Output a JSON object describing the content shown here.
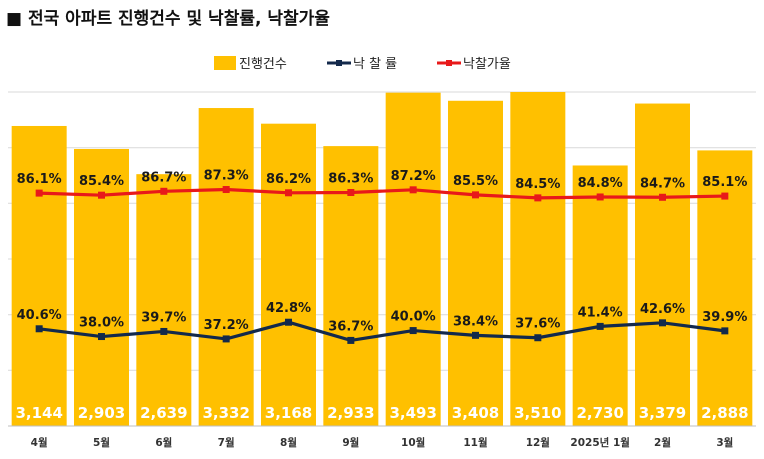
{
  "title": "■ 전국 아파트 진행건수 및 낙찰률, 낙찰가율",
  "colors": {
    "bar": "#FFC000",
    "rate_line": "#13294B",
    "price_line": "#E8191A",
    "grid": "#D9D9D9"
  },
  "chart_data": {
    "type": "bar",
    "categories": [
      "4월",
      "5월",
      "6월",
      "7월",
      "8월",
      "9월",
      "10월",
      "11월",
      "12월",
      "2025년 1월",
      "2월",
      "3월"
    ],
    "series": [
      {
        "name": "진행건수",
        "type": "bar",
        "values": [
          3144,
          2903,
          2639,
          3332,
          3168,
          2933,
          3493,
          3408,
          3510,
          2730,
          3379,
          2888
        ],
        "labels": [
          "3,144",
          "2,903",
          "2,639",
          "3,332",
          "3,168",
          "2,933",
          "3,493",
          "3,408",
          "3,510",
          "2,730",
          "3,379",
          "2,888"
        ]
      },
      {
        "name": "낙 찰 률",
        "type": "line",
        "values": [
          40.6,
          38.0,
          39.7,
          37.2,
          42.8,
          36.7,
          40.0,
          38.4,
          37.6,
          41.4,
          42.6,
          39.9
        ],
        "labels": [
          "40.6%",
          "38.0%",
          "39.7%",
          "37.2%",
          "42.8%",
          "36.7%",
          "40.0%",
          "38.4%",
          "37.6%",
          "41.4%",
          "42.6%",
          "39.9%"
        ]
      },
      {
        "name": "낙찰가율",
        "type": "line",
        "values": [
          86.1,
          85.4,
          86.7,
          87.3,
          86.2,
          86.3,
          87.2,
          85.5,
          84.5,
          84.8,
          84.7,
          85.1
        ],
        "labels": [
          "86.1%",
          "85.4%",
          "86.7%",
          "87.3%",
          "86.2%",
          "86.3%",
          "87.2%",
          "85.5%",
          "84.5%",
          "84.8%",
          "84.7%",
          "85.1%"
        ]
      }
    ],
    "grid": true,
    "legend": "top-center"
  }
}
